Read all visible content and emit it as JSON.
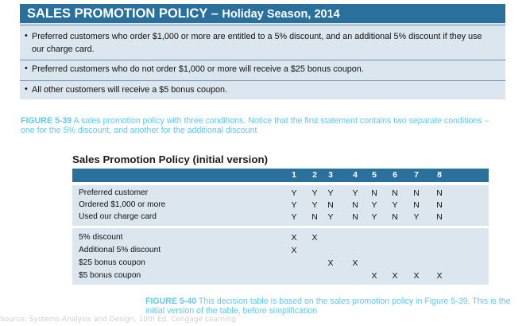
{
  "policy": {
    "title": "SALES PROMOTION POLICY –",
    "subtitle": "Holiday Season, 2014",
    "bullets": [
      {
        "mark": "•",
        "text": "Preferred customers who order $1,000 or more are entitled to a 5% discount, and an additional 5% discount if they use our charge card."
      },
      {
        "mark": "•",
        "text": "Preferred customers who do not order $1,000 or more will receive a $25 bonus coupon."
      },
      {
        "mark": "•",
        "text": "All other customers will receive a $5 bonus coupon."
      }
    ]
  },
  "figure39": {
    "label": "FIGURE 5-39",
    "text_before": " A sales promotion policy with three conditions. Notice that the first statement contains two ",
    "text_italic": "separate",
    "text_after": " conditions – one for the 5% discount, and another for the additional discount"
  },
  "decision_table": {
    "title": "Sales Promotion Policy (initial version)",
    "rules": [
      "1",
      "2",
      "3",
      "4",
      "5",
      "6",
      "7",
      "8"
    ],
    "conditions": [
      {
        "label": "Preferred customer",
        "values": [
          "Y",
          "Y",
          "Y",
          "Y",
          "N",
          "N",
          "N",
          "N"
        ]
      },
      {
        "label": "Ordered $1,000 or more",
        "values": [
          "Y",
          "Y",
          "N",
          "N",
          "Y",
          "Y",
          "N",
          "N"
        ]
      },
      {
        "label": "Used our charge card",
        "values": [
          "Y",
          "N",
          "Y",
          "N",
          "Y",
          "N",
          "Y",
          "N"
        ]
      }
    ],
    "actions": [
      {
        "label": "5% discount",
        "values": [
          "X",
          "X",
          "",
          "",
          "",
          "",
          "",
          ""
        ]
      },
      {
        "label": "Additional 5% discount",
        "values": [
          "X",
          "",
          "",
          "",
          "",
          "",
          "",
          ""
        ]
      },
      {
        "label": "$25 bonus coupon",
        "values": [
          "",
          "",
          "X",
          "X",
          "",
          "",
          "",
          ""
        ]
      },
      {
        "label": "$5 bonus coupon",
        "values": [
          "",
          "",
          "",
          "",
          "X",
          "X",
          "X",
          "X"
        ]
      }
    ]
  },
  "figure40": {
    "label": "FIGURE 5-40",
    "text": " This decision table is based on the sales promotion policy in Figure 5-39. This is the initial version of the table, before simplification"
  },
  "source_note": "Source: Systems Analysis and Design, 10th Ed. Cengage Learning"
}
